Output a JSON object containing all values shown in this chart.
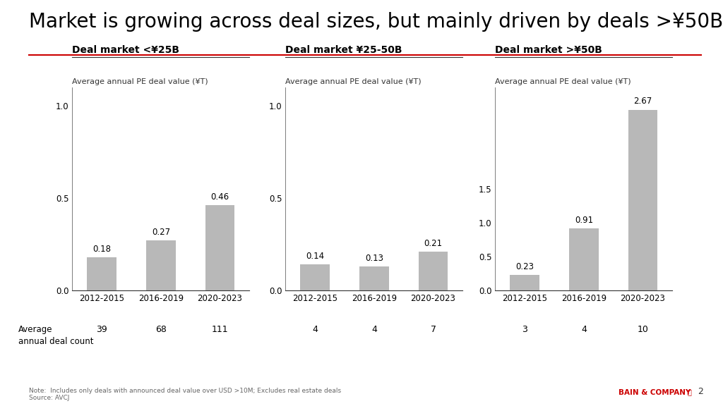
{
  "title": "Market is growing across deal sizes, but mainly driven by deals >¥50B",
  "title_fontsize": 20,
  "bg_color": "#ffffff",
  "bar_color": "#b8b8b8",
  "panels": [
    {
      "subtitle": "Deal market <¥25B",
      "ylabel": "Average annual PE deal value (¥T)",
      "categories": [
        "2012-2015",
        "2016-2019",
        "2020-2023"
      ],
      "values": [
        0.18,
        0.27,
        0.46
      ],
      "ylim": [
        0,
        1.1
      ],
      "yticks": [
        0.0,
        0.5,
        1.0
      ],
      "deal_counts": [
        "39",
        "68",
        "111"
      ]
    },
    {
      "subtitle": "Deal market ¥25-50B",
      "ylabel": "Average annual PE deal value (¥T)",
      "categories": [
        "2012-2015",
        "2016-2019",
        "2020-2023"
      ],
      "values": [
        0.14,
        0.13,
        0.21
      ],
      "ylim": [
        0,
        1.1
      ],
      "yticks": [
        0.0,
        0.5,
        1.0
      ],
      "deal_counts": [
        "4",
        "4",
        "7"
      ]
    },
    {
      "subtitle": "Deal market >¥50B",
      "ylabel": "Average annual PE deal value (¥T)",
      "categories": [
        "2012-2015",
        "2016-2019",
        "2020-2023"
      ],
      "values": [
        0.23,
        0.91,
        2.67
      ],
      "ylim": [
        0,
        3.0
      ],
      "yticks": [
        0.0,
        0.5,
        1.0,
        1.5
      ],
      "deal_counts": [
        "3",
        "4",
        "10"
      ]
    }
  ],
  "avg_deal_label": "Average\nannual deal count",
  "note": "Note:  Includes only deals with announced deal value over USD >10M; Excludes real estate deals\nSource: AVCJ",
  "bain_text": "BAIN & COMPANY",
  "page_num": "2"
}
